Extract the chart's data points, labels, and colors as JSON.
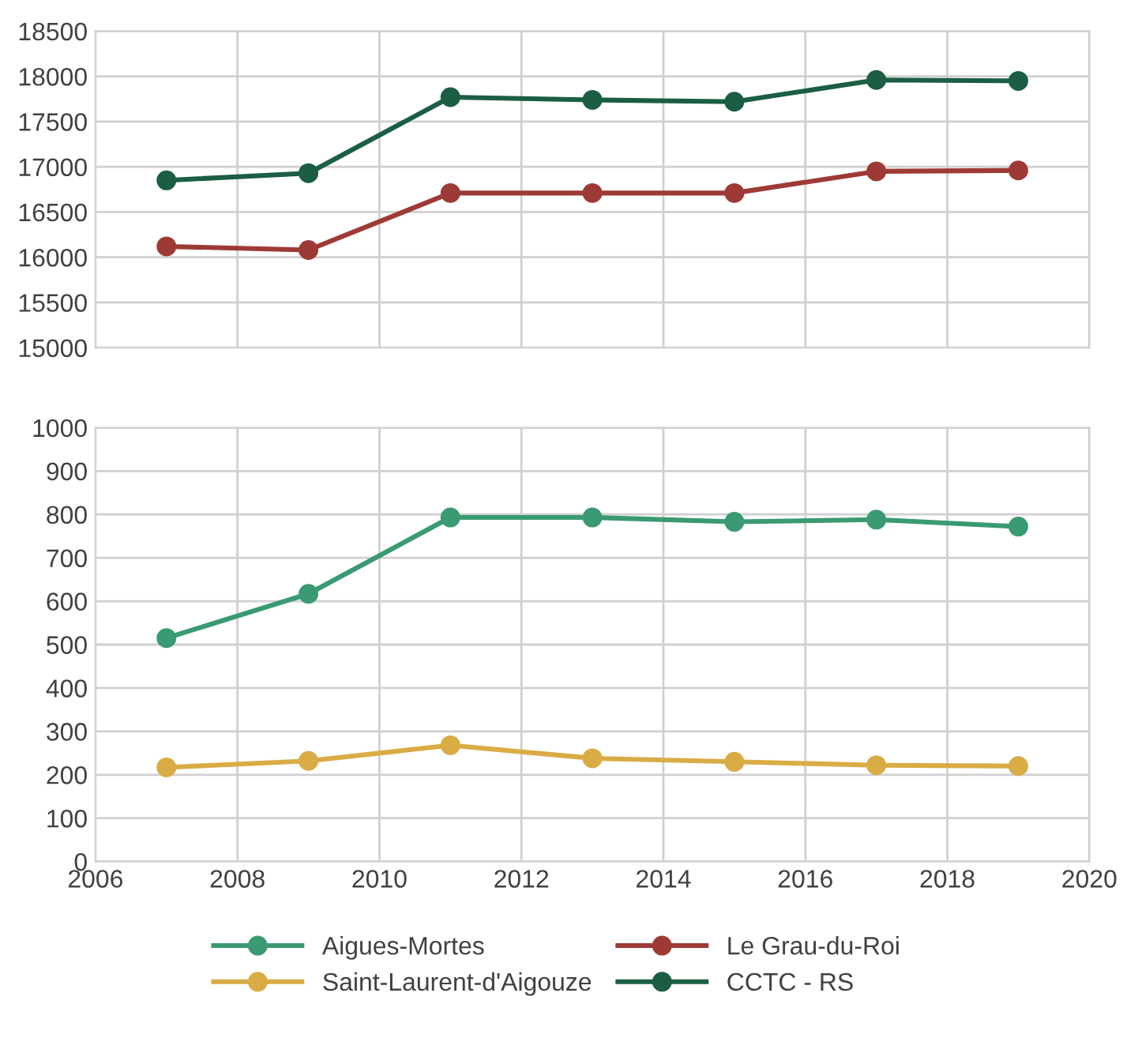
{
  "chart_data": [
    {
      "type": "line",
      "x": [
        2007,
        2009,
        2011,
        2013,
        2015,
        2017,
        2019
      ],
      "xlim": [
        2006,
        2020
      ],
      "xticks": [
        2006,
        2008,
        2010,
        2012,
        2014,
        2016,
        2018,
        2020
      ],
      "ylim": [
        15000,
        18500
      ],
      "yticks": [
        15000,
        15500,
        16000,
        16500,
        17000,
        17500,
        18000,
        18500
      ],
      "tick_labels": "y",
      "grid": true,
      "legend": "bottom",
      "marker": "circle",
      "line_style": "solid",
      "series": [
        {
          "name": "Le Grau-du-Roi",
          "color": "#9e3a35",
          "values": [
            16120,
            16080,
            16710,
            16710,
            16710,
            16950,
            16960
          ]
        },
        {
          "name": "CCTC - RS",
          "color": "#1b5e43",
          "values": [
            16850,
            16930,
            17770,
            17740,
            17720,
            17960,
            17950
          ]
        }
      ]
    },
    {
      "type": "line",
      "x": [
        2007,
        2009,
        2011,
        2013,
        2015,
        2017,
        2019
      ],
      "xlim": [
        2006,
        2020
      ],
      "xticks": [
        2006,
        2008,
        2010,
        2012,
        2014,
        2016,
        2018,
        2020
      ],
      "ylim": [
        0,
        1000
      ],
      "yticks": [
        0,
        100,
        200,
        300,
        400,
        500,
        600,
        700,
        800,
        900,
        1000
      ],
      "grid": true,
      "marker": "circle",
      "line_style": "solid",
      "legend": "bottom",
      "series": [
        {
          "name": "Aigues-Mortes",
          "color": "#3a9a72",
          "values": [
            515,
            617,
            793,
            793,
            783,
            788,
            772
          ]
        },
        {
          "name": "Saint-Laurent-d'Aigouze",
          "color": "#d9ac45",
          "values": [
            217,
            232,
            268,
            238,
            230,
            222,
            220
          ]
        }
      ]
    }
  ]
}
